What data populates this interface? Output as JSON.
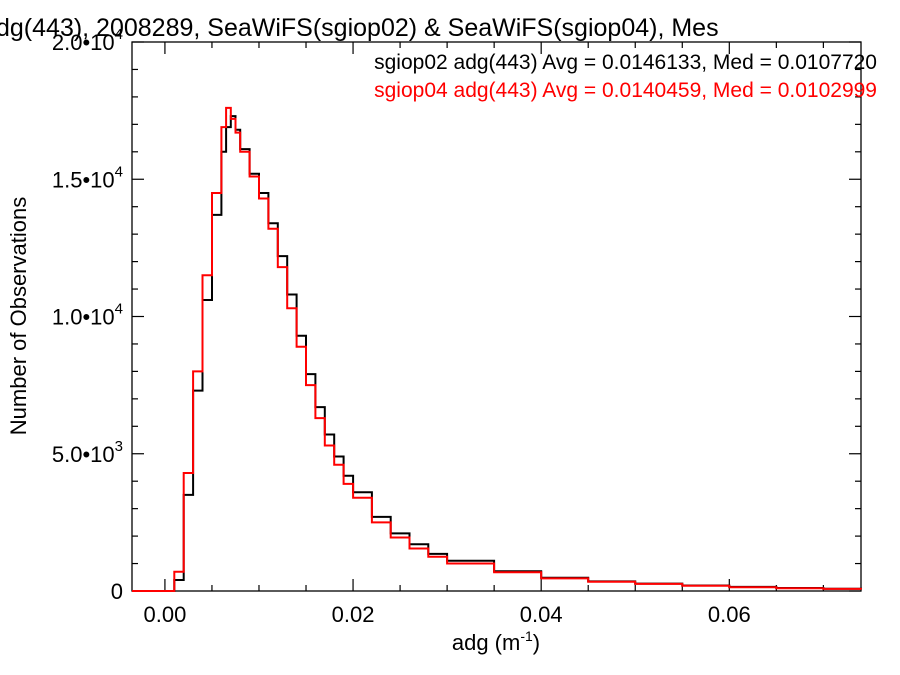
{
  "chart_data": {
    "type": "line",
    "title": "dg(443), 2008289, SeaWiFS(sgiop02) & SeaWiFS(sgiop04), Mes",
    "xlabel": "adg (m",
    "xlabel_sup": "-1",
    "xlabel_close": ")",
    "ylabel": "Number of Observations",
    "xlim": [
      -0.0035,
      0.074
    ],
    "ylim": [
      0,
      20000
    ],
    "x_ticks": [
      {
        "value": 0.0,
        "label": "0.00"
      },
      {
        "value": 0.02,
        "label": "0.02"
      },
      {
        "value": 0.04,
        "label": "0.04"
      },
      {
        "value": 0.06,
        "label": "0.06"
      }
    ],
    "y_ticks": [
      {
        "value": 0,
        "mant": "0",
        "exp": ""
      },
      {
        "value": 5000,
        "mant": "5.0•10",
        "exp": "3"
      },
      {
        "value": 10000,
        "mant": "1.0•10",
        "exp": "4"
      },
      {
        "value": 15000,
        "mant": "1.5•10",
        "exp": "4"
      },
      {
        "value": 20000,
        "mant": "2.0•10",
        "exp": "4"
      }
    ],
    "grid": false,
    "step": true,
    "legend_position": "top-right",
    "series": [
      {
        "name": "sgiop02 adg(443) Avg = 0.0146133, Med = 0.0107720",
        "color": "#000000",
        "x": [
          -0.0035,
          0.0,
          0.001,
          0.002,
          0.003,
          0.004,
          0.005,
          0.006,
          0.0065,
          0.007,
          0.0075,
          0.008,
          0.009,
          0.01,
          0.011,
          0.012,
          0.013,
          0.014,
          0.015,
          0.016,
          0.017,
          0.018,
          0.019,
          0.02,
          0.022,
          0.024,
          0.026,
          0.028,
          0.03,
          0.035,
          0.04,
          0.045,
          0.05,
          0.055,
          0.06,
          0.065,
          0.07,
          0.074
        ],
        "y": [
          0,
          0,
          400,
          3500,
          7300,
          10600,
          13700,
          16000,
          16900,
          17300,
          16800,
          16100,
          15200,
          14500,
          13400,
          12200,
          10800,
          9300,
          7900,
          6700,
          5700,
          4900,
          4200,
          3600,
          2700,
          2100,
          1700,
          1350,
          1100,
          720,
          480,
          350,
          270,
          200,
          150,
          110,
          80,
          60
        ]
      },
      {
        "name": "sgiop04 adg(443) Avg = 0.0140459, Med = 0.0102999",
        "color": "#ff0000",
        "x": [
          -0.0035,
          0.0,
          0.001,
          0.002,
          0.003,
          0.004,
          0.005,
          0.006,
          0.0065,
          0.007,
          0.0075,
          0.008,
          0.009,
          0.01,
          0.011,
          0.012,
          0.013,
          0.014,
          0.015,
          0.016,
          0.017,
          0.018,
          0.019,
          0.02,
          0.022,
          0.024,
          0.026,
          0.028,
          0.03,
          0.035,
          0.04,
          0.045,
          0.05,
          0.055,
          0.06,
          0.065,
          0.07,
          0.074
        ],
        "y": [
          0,
          0,
          700,
          4300,
          8000,
          11500,
          14500,
          16900,
          17600,
          17200,
          16700,
          16000,
          15100,
          14300,
          13200,
          11800,
          10300,
          8900,
          7500,
          6300,
          5300,
          4600,
          3900,
          3400,
          2500,
          1950,
          1550,
          1250,
          1000,
          680,
          460,
          340,
          260,
          190,
          140,
          100,
          75,
          55
        ]
      }
    ]
  }
}
